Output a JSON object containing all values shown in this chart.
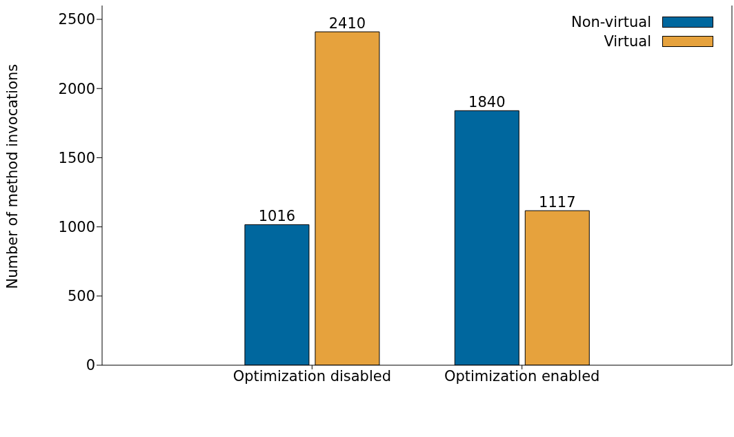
{
  "chart_data": {
    "type": "bar",
    "ylabel": "Number of method invocations",
    "categories": [
      "Optimization disabled",
      "Optimization enabled"
    ],
    "series": [
      {
        "name": "Non-virtual",
        "color": "#00679e",
        "values": [
          1016,
          1840
        ]
      },
      {
        "name": "Virtual",
        "color": "#e6a23d",
        "values": [
          2410,
          1117
        ]
      }
    ],
    "ylim": [
      0,
      2600
    ],
    "yticks": [
      0,
      500,
      1000,
      1500,
      2000,
      2500
    ],
    "data_labels": true,
    "legend": "top right",
    "grid": false
  }
}
